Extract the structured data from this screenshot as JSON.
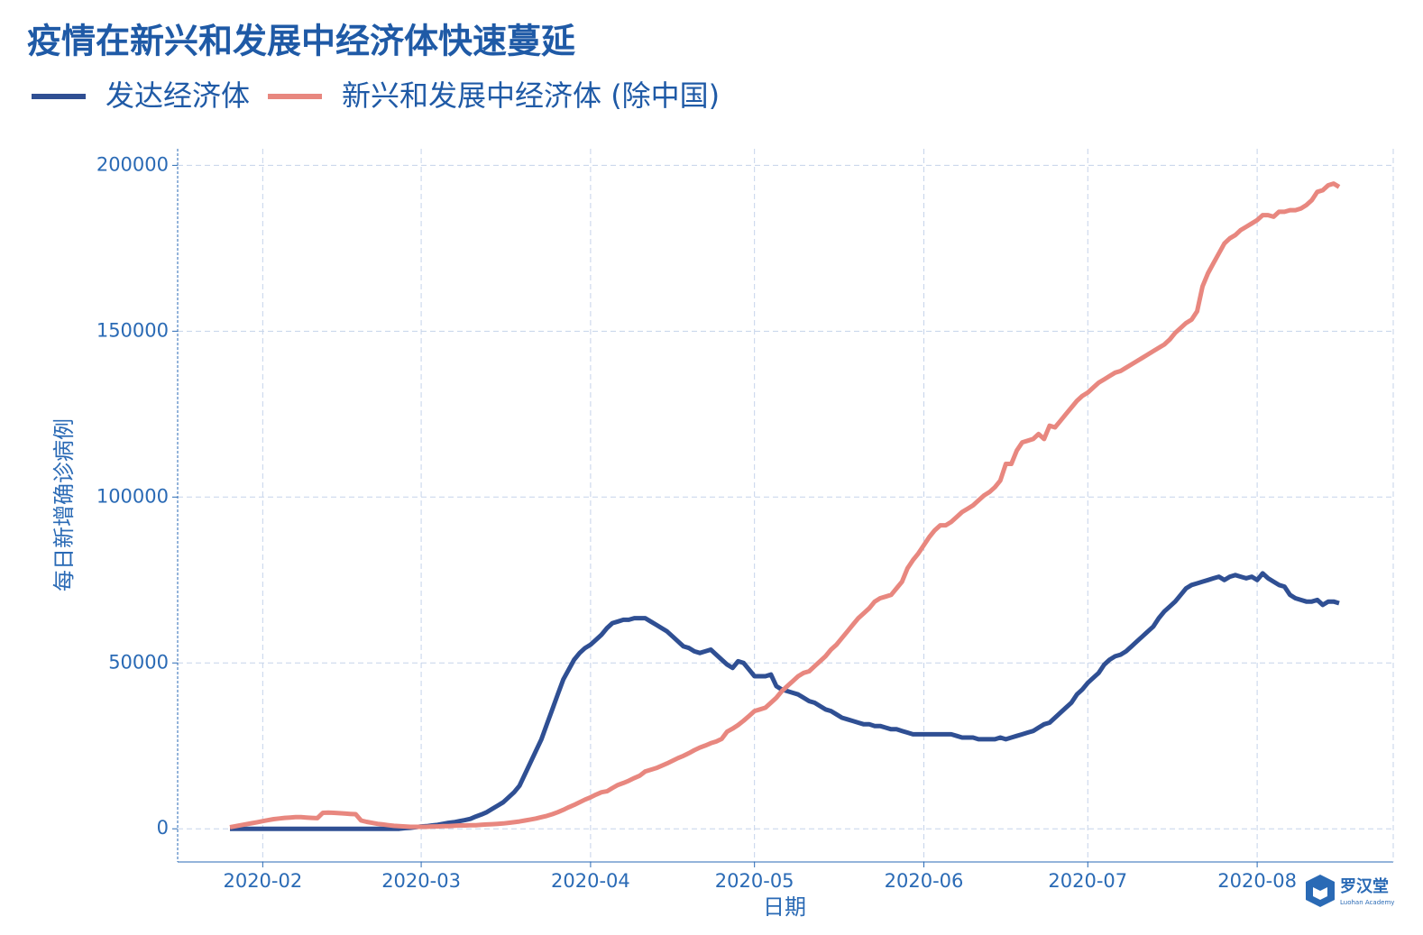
{
  "chart_data": {
    "type": "line",
    "title": "疫情在新兴和发展中经济体快速蔓延",
    "x_label": "日期",
    "y_label": "每日新增确诊病例",
    "grid": true,
    "ylim": [
      -10000,
      205000
    ],
    "yticks": [
      0,
      50000,
      100000,
      150000,
      200000
    ],
    "categories": [
      null,
      null,
      null,
      null,
      null,
      null,
      "2020-02",
      null,
      null,
      null,
      null,
      null,
      null,
      null,
      null,
      null,
      null,
      null,
      null,
      null,
      null,
      null,
      null,
      null,
      null,
      null,
      null,
      null,
      null,
      null,
      null,
      null,
      null,
      null,
      null,
      "2020-03",
      null,
      null,
      null,
      null,
      null,
      null,
      null,
      null,
      null,
      null,
      null,
      null,
      null,
      null,
      null,
      null,
      null,
      null,
      null,
      null,
      null,
      null,
      null,
      null,
      null,
      null,
      null,
      null,
      null,
      null,
      "2020-04",
      null,
      null,
      null,
      null,
      null,
      null,
      null,
      null,
      null,
      null,
      null,
      null,
      null,
      null,
      null,
      null,
      null,
      null,
      null,
      null,
      null,
      null,
      null,
      null,
      null,
      null,
      null,
      null,
      null,
      "2020-05",
      null,
      null,
      null,
      null,
      null,
      null,
      null,
      null,
      null,
      null,
      null,
      null,
      null,
      null,
      null,
      null,
      null,
      null,
      null,
      null,
      null,
      null,
      null,
      null,
      null,
      null,
      null,
      null,
      null,
      null,
      "2020-06",
      null,
      null,
      null,
      null,
      null,
      null,
      null,
      null,
      null,
      null,
      null,
      null,
      null,
      null,
      null,
      null,
      null,
      null,
      null,
      null,
      null,
      null,
      null,
      null,
      null,
      null,
      null,
      null,
      null,
      "2020-07",
      null,
      null,
      null,
      null,
      null,
      null,
      null,
      null,
      null,
      null,
      null,
      null,
      null,
      null,
      null,
      null,
      null,
      null,
      null,
      null,
      null,
      null,
      null,
      null,
      null,
      null,
      null,
      null,
      null,
      null,
      "2020-08",
      null,
      null,
      null,
      null,
      null,
      null,
      null,
      null,
      null,
      null,
      null,
      null,
      null,
      null,
      null
    ],
    "series": [
      {
        "name": "发达经济体",
        "color": "#2f4f93",
        "values": [
          0,
          0,
          0,
          0,
          0,
          0,
          0,
          0,
          0,
          0,
          0,
          0,
          0,
          0,
          0,
          0,
          0,
          0,
          0,
          0,
          0,
          0,
          0,
          0,
          0,
          0,
          0,
          0,
          0,
          0,
          0,
          0,
          200,
          300,
          500,
          700,
          800,
          1000,
          1200,
          1500,
          1800,
          2000,
          2300,
          2600,
          3000,
          3700,
          4300,
          5000,
          6000,
          7000,
          8000,
          9500,
          11000,
          13000,
          16500,
          20000,
          23500,
          27000,
          31500,
          36000,
          40500,
          45000,
          48000,
          51000,
          53000,
          54500,
          55500,
          57000,
          58500,
          60500,
          62000,
          62500,
          63000,
          63000,
          63500,
          63500,
          63500,
          62500,
          61500,
          60500,
          59500,
          58000,
          56500,
          55000,
          54500,
          53500,
          53000,
          53500,
          54000,
          52500,
          51000,
          49500,
          48500,
          50500,
          50000,
          48000,
          46000,
          46000,
          46000,
          46500,
          43000,
          42000,
          41500,
          41000,
          40500,
          39500,
          38500,
          38000,
          37000,
          36000,
          35500,
          34500,
          33500,
          33000,
          32500,
          32000,
          31500,
          31500,
          31000,
          31000,
          30500,
          30000,
          30000,
          29500,
          29000,
          28500,
          28500,
          28500,
          28500,
          28500,
          28500,
          28500,
          28500,
          28000,
          27500,
          27500,
          27500,
          27000,
          27000,
          27000,
          27000,
          27500,
          27000,
          27500,
          28000,
          28500,
          29000,
          29500,
          30500,
          31500,
          32000,
          33500,
          35000,
          36500,
          38000,
          40500,
          42000,
          44000,
          45500,
          47000,
          49500,
          51000,
          52000,
          52500,
          53500,
          55000,
          56500,
          58000,
          59500,
          61000,
          63500,
          65500,
          67000,
          68500,
          70500,
          72500,
          73500,
          74000,
          74500,
          75000,
          75500,
          76000,
          75000,
          76000,
          76500,
          76000,
          75500,
          76000,
          75000,
          77000,
          75500,
          74500,
          73500,
          73000,
          70500,
          69500,
          69000,
          68500,
          68500,
          69000,
          67500,
          68500,
          68500,
          68000
        ]
      },
      {
        "name": "新兴和发展中经济体 (除中国)",
        "color": "#e8877f",
        "values": [
          500,
          800,
          1100,
          1400,
          1700,
          2000,
          2300,
          2600,
          2900,
          3100,
          3300,
          3400,
          3500,
          3500,
          3400,
          3300,
          3200,
          4800,
          4900,
          4800,
          4700,
          4600,
          4500,
          4400,
          2500,
          2100,
          1800,
          1500,
          1300,
          1100,
          900,
          800,
          700,
          600,
          600,
          600,
          600,
          700,
          700,
          800,
          800,
          900,
          1000,
          1000,
          1100,
          1100,
          1200,
          1300,
          1400,
          1500,
          1600,
          1800,
          2000,
          2200,
          2500,
          2800,
          3100,
          3500,
          3900,
          4400,
          5000,
          5700,
          6500,
          7200,
          8000,
          8800,
          9500,
          10300,
          11000,
          11300,
          12300,
          13200,
          13800,
          14500,
          15300,
          16000,
          17300,
          17800,
          18300,
          19000,
          19700,
          20500,
          21300,
          22000,
          22800,
          23700,
          24500,
          25100,
          25800,
          26300,
          27100,
          29300,
          30200,
          31300,
          32600,
          34000,
          35500,
          36000,
          36500,
          38000,
          39500,
          41500,
          43000,
          44500,
          46000,
          47000,
          47500,
          49000,
          50500,
          52000,
          54000,
          55500,
          57500,
          59500,
          61500,
          63500,
          65000,
          66500,
          68500,
          69500,
          70000,
          70500,
          72500,
          74500,
          78500,
          81000,
          83000,
          85500,
          88000,
          90000,
          91500,
          91500,
          92500,
          94000,
          95500,
          96500,
          97500,
          99000,
          100500,
          101500,
          103000,
          105000,
          110000,
          110000,
          114000,
          116500,
          117000,
          117500,
          119000,
          117500,
          121500,
          121000,
          123000,
          125000,
          127000,
          129000,
          130500,
          131500,
          133000,
          134500,
          135500,
          136500,
          137500,
          138000,
          139000,
          140000,
          141000,
          142000,
          143000,
          144000,
          145000,
          146000,
          147500,
          149500,
          151000,
          152500,
          153500,
          156000,
          163500,
          167500,
          170500,
          173500,
          176500,
          178000,
          179000,
          180500,
          181500,
          182500,
          183500,
          185000,
          185000,
          184500,
          186000,
          186000,
          186500,
          186500,
          187000,
          188000,
          189500,
          192000,
          192500,
          194000,
          194500,
          193500
        ]
      }
    ]
  },
  "logo": {
    "name": "罗汉堂",
    "subtitle": "Luohan Academy"
  }
}
